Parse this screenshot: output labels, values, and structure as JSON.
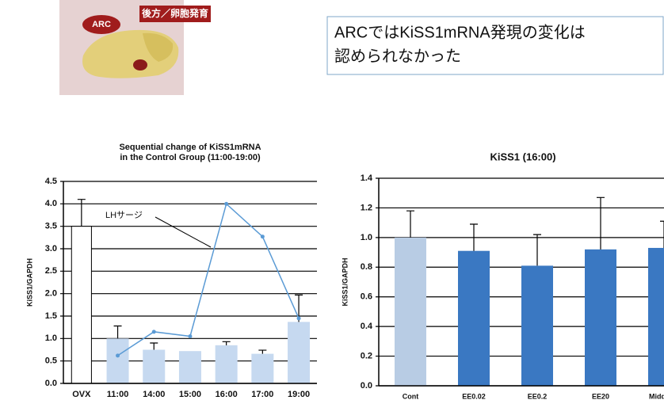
{
  "header": {
    "arc_label": "ARC",
    "region_label": "後方／卵胞発育",
    "note": [
      "ARCではKiSS1mRNA発現の変化は",
      "認められなかった"
    ]
  },
  "chart_data": [
    {
      "type": "bar",
      "title": [
        "Sequential change of KiSS1mRNA",
        "in the Control Group (11:00-19:00)"
      ],
      "ylabel": "KiSS1/GAPDH",
      "categories": [
        "OVX",
        "11:00",
        "14:00",
        "15:00",
        "16:00",
        "17:00",
        "19:00"
      ],
      "values": [
        3.5,
        1.0,
        0.75,
        0.72,
        0.85,
        0.66,
        1.37
      ],
      "errors": [
        0.6,
        0.28,
        0.15,
        null,
        0.08,
        0.08,
        0.6
      ],
      "colors": [
        "#ffffff",
        "#c6d9f0",
        "#c6d9f0",
        "#c6d9f0",
        "#c6d9f0",
        "#c6d9f0",
        "#c6d9f0"
      ],
      "line_values": [
        null,
        0.62,
        1.15,
        1.05,
        4.0,
        3.27,
        1.45
      ],
      "line_color": "#5b9bd5",
      "annotation": "LHサージ",
      "ylim": [
        0,
        4.5
      ],
      "yticks": [
        {
          "value": 0,
          "label": "0.0"
        },
        {
          "value": 0.5,
          "label": "0.5"
        },
        {
          "value": 1,
          "label": "1.0"
        },
        {
          "value": 1.5,
          "label": "1.5"
        },
        {
          "value": 2,
          "label": "2.0"
        },
        {
          "value": 2.5,
          "label": "2.5"
        },
        {
          "value": 3,
          "label": "3.0"
        },
        {
          "value": 3.5,
          "label": "3.5"
        },
        {
          "value": 4,
          "label": "4.0"
        },
        {
          "value": 4.5,
          "label": "4.5"
        }
      ],
      "grid": true
    },
    {
      "type": "bar",
      "title": [
        "KiSS1 (16:00)"
      ],
      "ylabel": "KiSS1/GAPDH",
      "categories": [
        "Cont",
        "EE0.02",
        "EE0.2",
        "EE20",
        "Middle(N"
      ],
      "values": [
        1.0,
        0.91,
        0.81,
        0.92,
        0.93
      ],
      "errors": [
        0.18,
        0.18,
        0.21,
        0.35,
        0.18
      ],
      "colors": [
        "#b8cce4",
        "#3a78c2",
        "#3a78c2",
        "#3a78c2",
        "#3a78c2"
      ],
      "ylim": [
        0,
        1.4
      ],
      "yticks": [
        {
          "value": 0,
          "label": "0.0"
        },
        {
          "value": 0.2,
          "label": "0.2"
        },
        {
          "value": 0.4,
          "label": "0.4"
        },
        {
          "value": 0.6,
          "label": "0.6"
        },
        {
          "value": 0.8,
          "label": "0.8"
        },
        {
          "value": 1,
          "label": "1.0"
        },
        {
          "value": 1.2,
          "label": "1.2"
        },
        {
          "value": 1.4,
          "label": "1.4"
        }
      ],
      "grid": true
    }
  ]
}
